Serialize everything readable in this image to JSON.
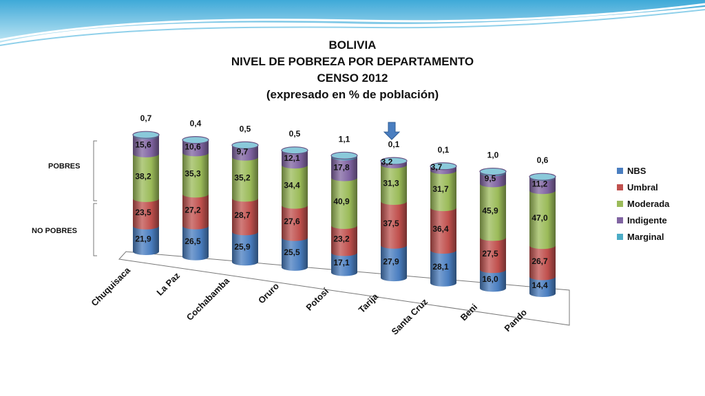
{
  "header": {
    "lines": [
      "BOLIVIA",
      "NIVEL DE POBREZA POR DEPARTAMENTO",
      "CENSO 2012",
      "(expresado en % de población)"
    ]
  },
  "side_labels": {
    "pobres": "POBRES",
    "no_pobres": "NO POBRES"
  },
  "colors": {
    "NBS": "#4a7ec0",
    "Umbral": "#c0504d",
    "Moderada": "#9bbb59",
    "Indigente": "#8064a2",
    "Marginal": "#4bacc6"
  },
  "chart_data": {
    "type": "bar",
    "stacked": true,
    "categories": [
      "Chuquisaca",
      "La Paz",
      "Cochabamba",
      "Oruro",
      "Potosí",
      "Tarija",
      "Santa Cruz",
      "Beni",
      "Pando"
    ],
    "series": [
      {
        "name": "NBS",
        "values": [
          21.9,
          26.5,
          25.9,
          25.5,
          17.1,
          27.9,
          28.1,
          16.0,
          14.4
        ],
        "labels": [
          "21,9",
          "26,5",
          "25,9",
          "25,5",
          "17,1",
          "27,9",
          "28,1",
          "16,0",
          "14,4"
        ]
      },
      {
        "name": "Umbral",
        "values": [
          23.5,
          27.2,
          28.7,
          27.6,
          23.2,
          37.5,
          36.4,
          27.5,
          26.7
        ],
        "labels": [
          "23,5",
          "27,2",
          "28,7",
          "27,6",
          "23,2",
          "37,5",
          "36,4",
          "27,5",
          "26,7"
        ]
      },
      {
        "name": "Moderada",
        "values": [
          38.2,
          35.3,
          35.2,
          34.4,
          40.9,
          31.3,
          31.7,
          45.9,
          47.0
        ],
        "labels": [
          "38,2",
          "35,3",
          "35,2",
          "34,4",
          "40,9",
          "31,3",
          "31,7",
          "45,9",
          "47,0"
        ]
      },
      {
        "name": "Indigente",
        "values": [
          15.6,
          10.6,
          9.7,
          12.1,
          17.8,
          3.2,
          3.7,
          9.5,
          11.2
        ],
        "labels": [
          "15,6",
          "10,6",
          "9,7",
          "12,1",
          "17,8",
          "3,2",
          "3,7",
          "9,5",
          "11,2"
        ]
      },
      {
        "name": "Marginal",
        "values": [
          0.7,
          0.4,
          0.5,
          0.5,
          1.1,
          0.1,
          0.1,
          1.0,
          0.6
        ],
        "labels": [
          "0,7",
          "0,4",
          "0,5",
          "0,5",
          "1,1",
          "0,1",
          "0,1",
          "1,0",
          "0,6"
        ]
      }
    ],
    "highlighted_category": "Tarija",
    "legend_position": "right",
    "grid": false
  }
}
